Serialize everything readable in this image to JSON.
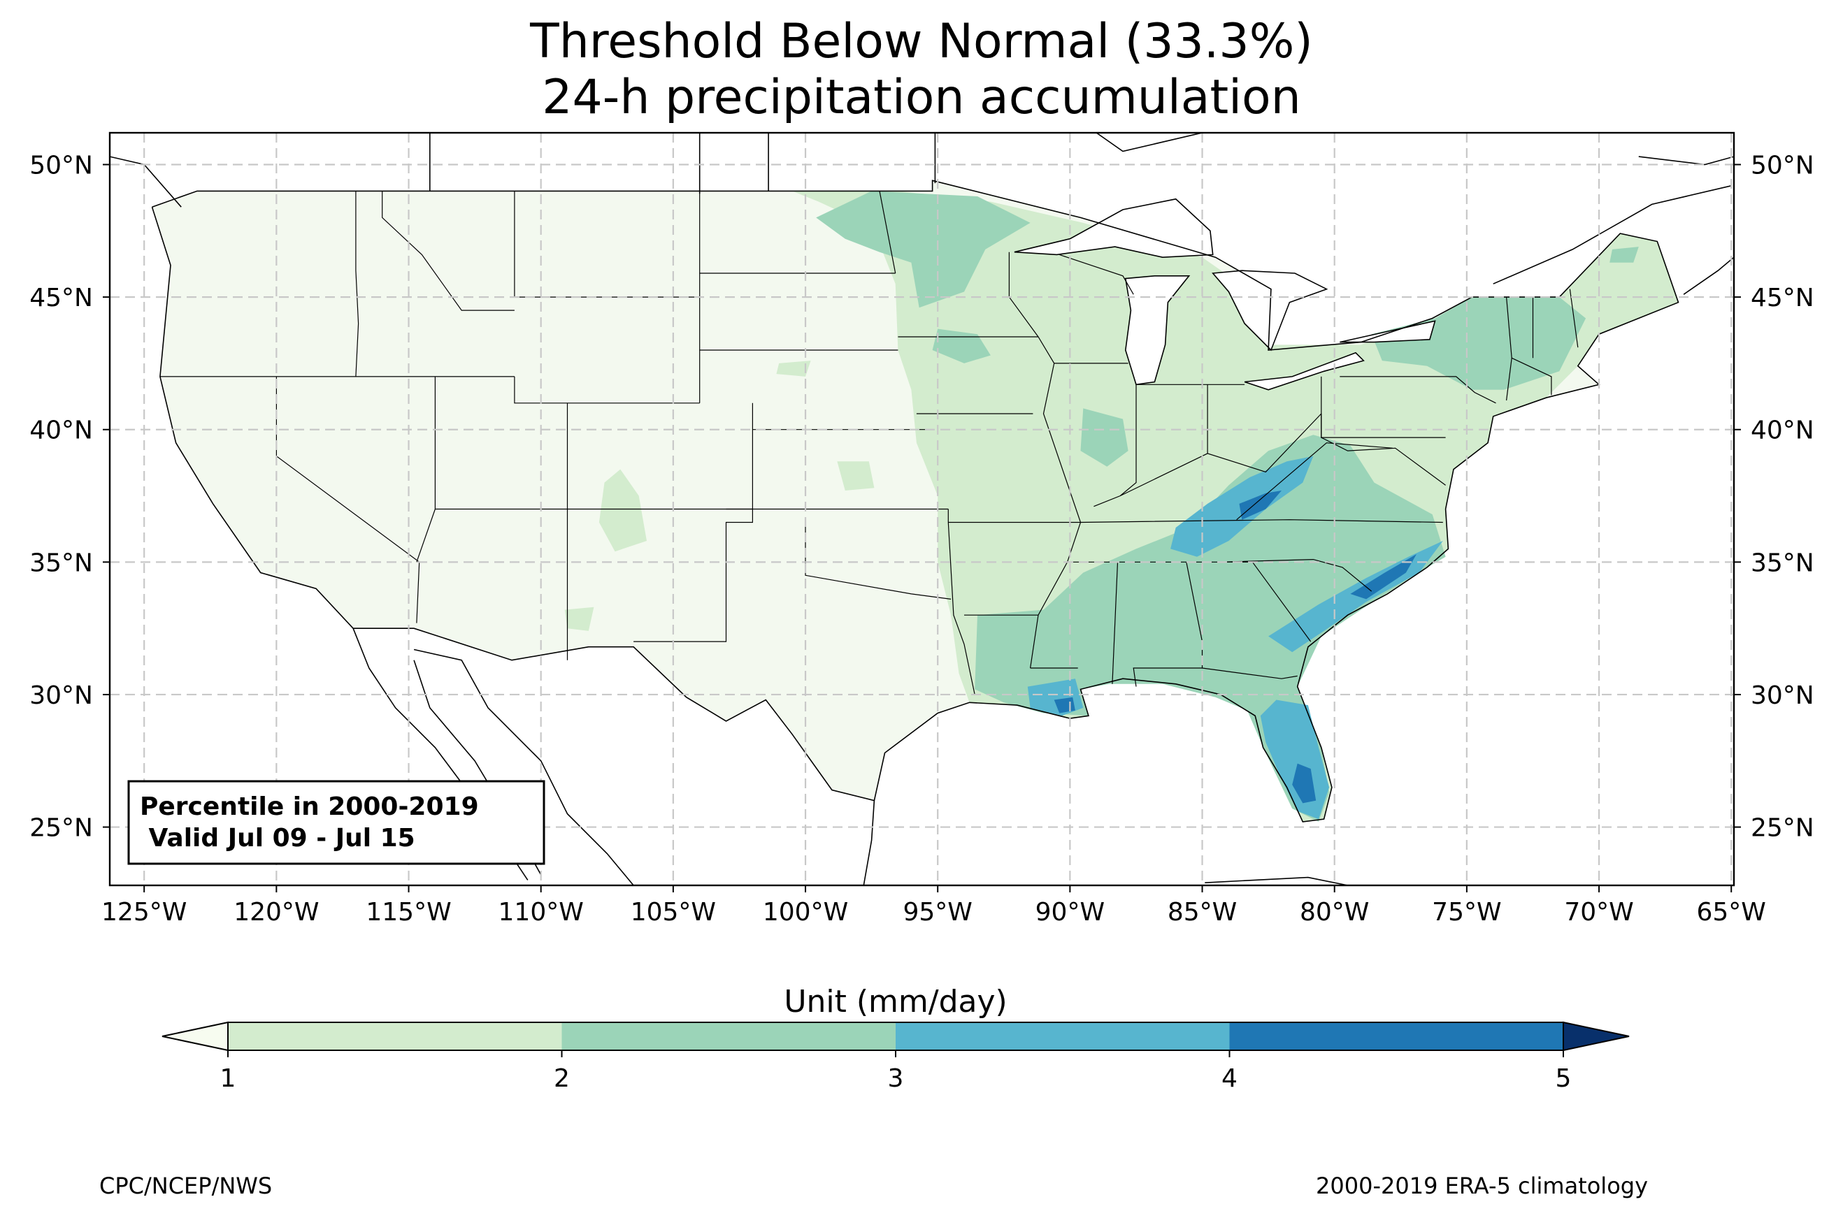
{
  "title": "Threshold Below Normal (33.3%)",
  "subtitle": "24-h precipitation accumulation",
  "map": {
    "lon_range": [
      -126.3,
      -64.9
    ],
    "lat_range": [
      22.8,
      51.2
    ],
    "lon_ticks": [
      {
        "value": -125,
        "label": "125°W"
      },
      {
        "value": -120,
        "label": "120°W"
      },
      {
        "value": -115,
        "label": "115°W"
      },
      {
        "value": -110,
        "label": "110°W"
      },
      {
        "value": -105,
        "label": "105°W"
      },
      {
        "value": -100,
        "label": "100°W"
      },
      {
        "value": -95,
        "label": "95°W"
      },
      {
        "value": -90,
        "label": "90°W"
      },
      {
        "value": -85,
        "label": "85°W"
      },
      {
        "value": -80,
        "label": "80°W"
      },
      {
        "value": -75,
        "label": "75°W"
      },
      {
        "value": -70,
        "label": "70°W"
      },
      {
        "value": -65,
        "label": "65°W"
      }
    ],
    "lat_ticks": [
      {
        "value": 25,
        "label": "25°N"
      },
      {
        "value": 30,
        "label": "30°N"
      },
      {
        "value": 35,
        "label": "35°N"
      },
      {
        "value": 40,
        "label": "40°N"
      },
      {
        "value": 45,
        "label": "45°N"
      },
      {
        "value": 50,
        "label": "50°N"
      }
    ],
    "gridlines": "dashed",
    "info_box": {
      "line1": "Percentile in 2000-2019",
      "line2": " Valid Jul 09 - Jul 15",
      "placement": "bottom-left"
    }
  },
  "colorbar": {
    "label": "Unit (mm/day)",
    "extend": "both",
    "ticks": [
      "1",
      "2",
      "3",
      "4",
      "5"
    ],
    "under_color": "#f7fcf0",
    "over_color": "#08306b",
    "colors": [
      "#d3ecce",
      "#9bd4b8",
      "#57b5cf",
      "#1f77b4"
    ],
    "missing_color": "#f3f9ef"
  },
  "footer": {
    "left": "CPC/NCEP/NWS",
    "right": "2000-2019 ERA-5 climatology"
  }
}
